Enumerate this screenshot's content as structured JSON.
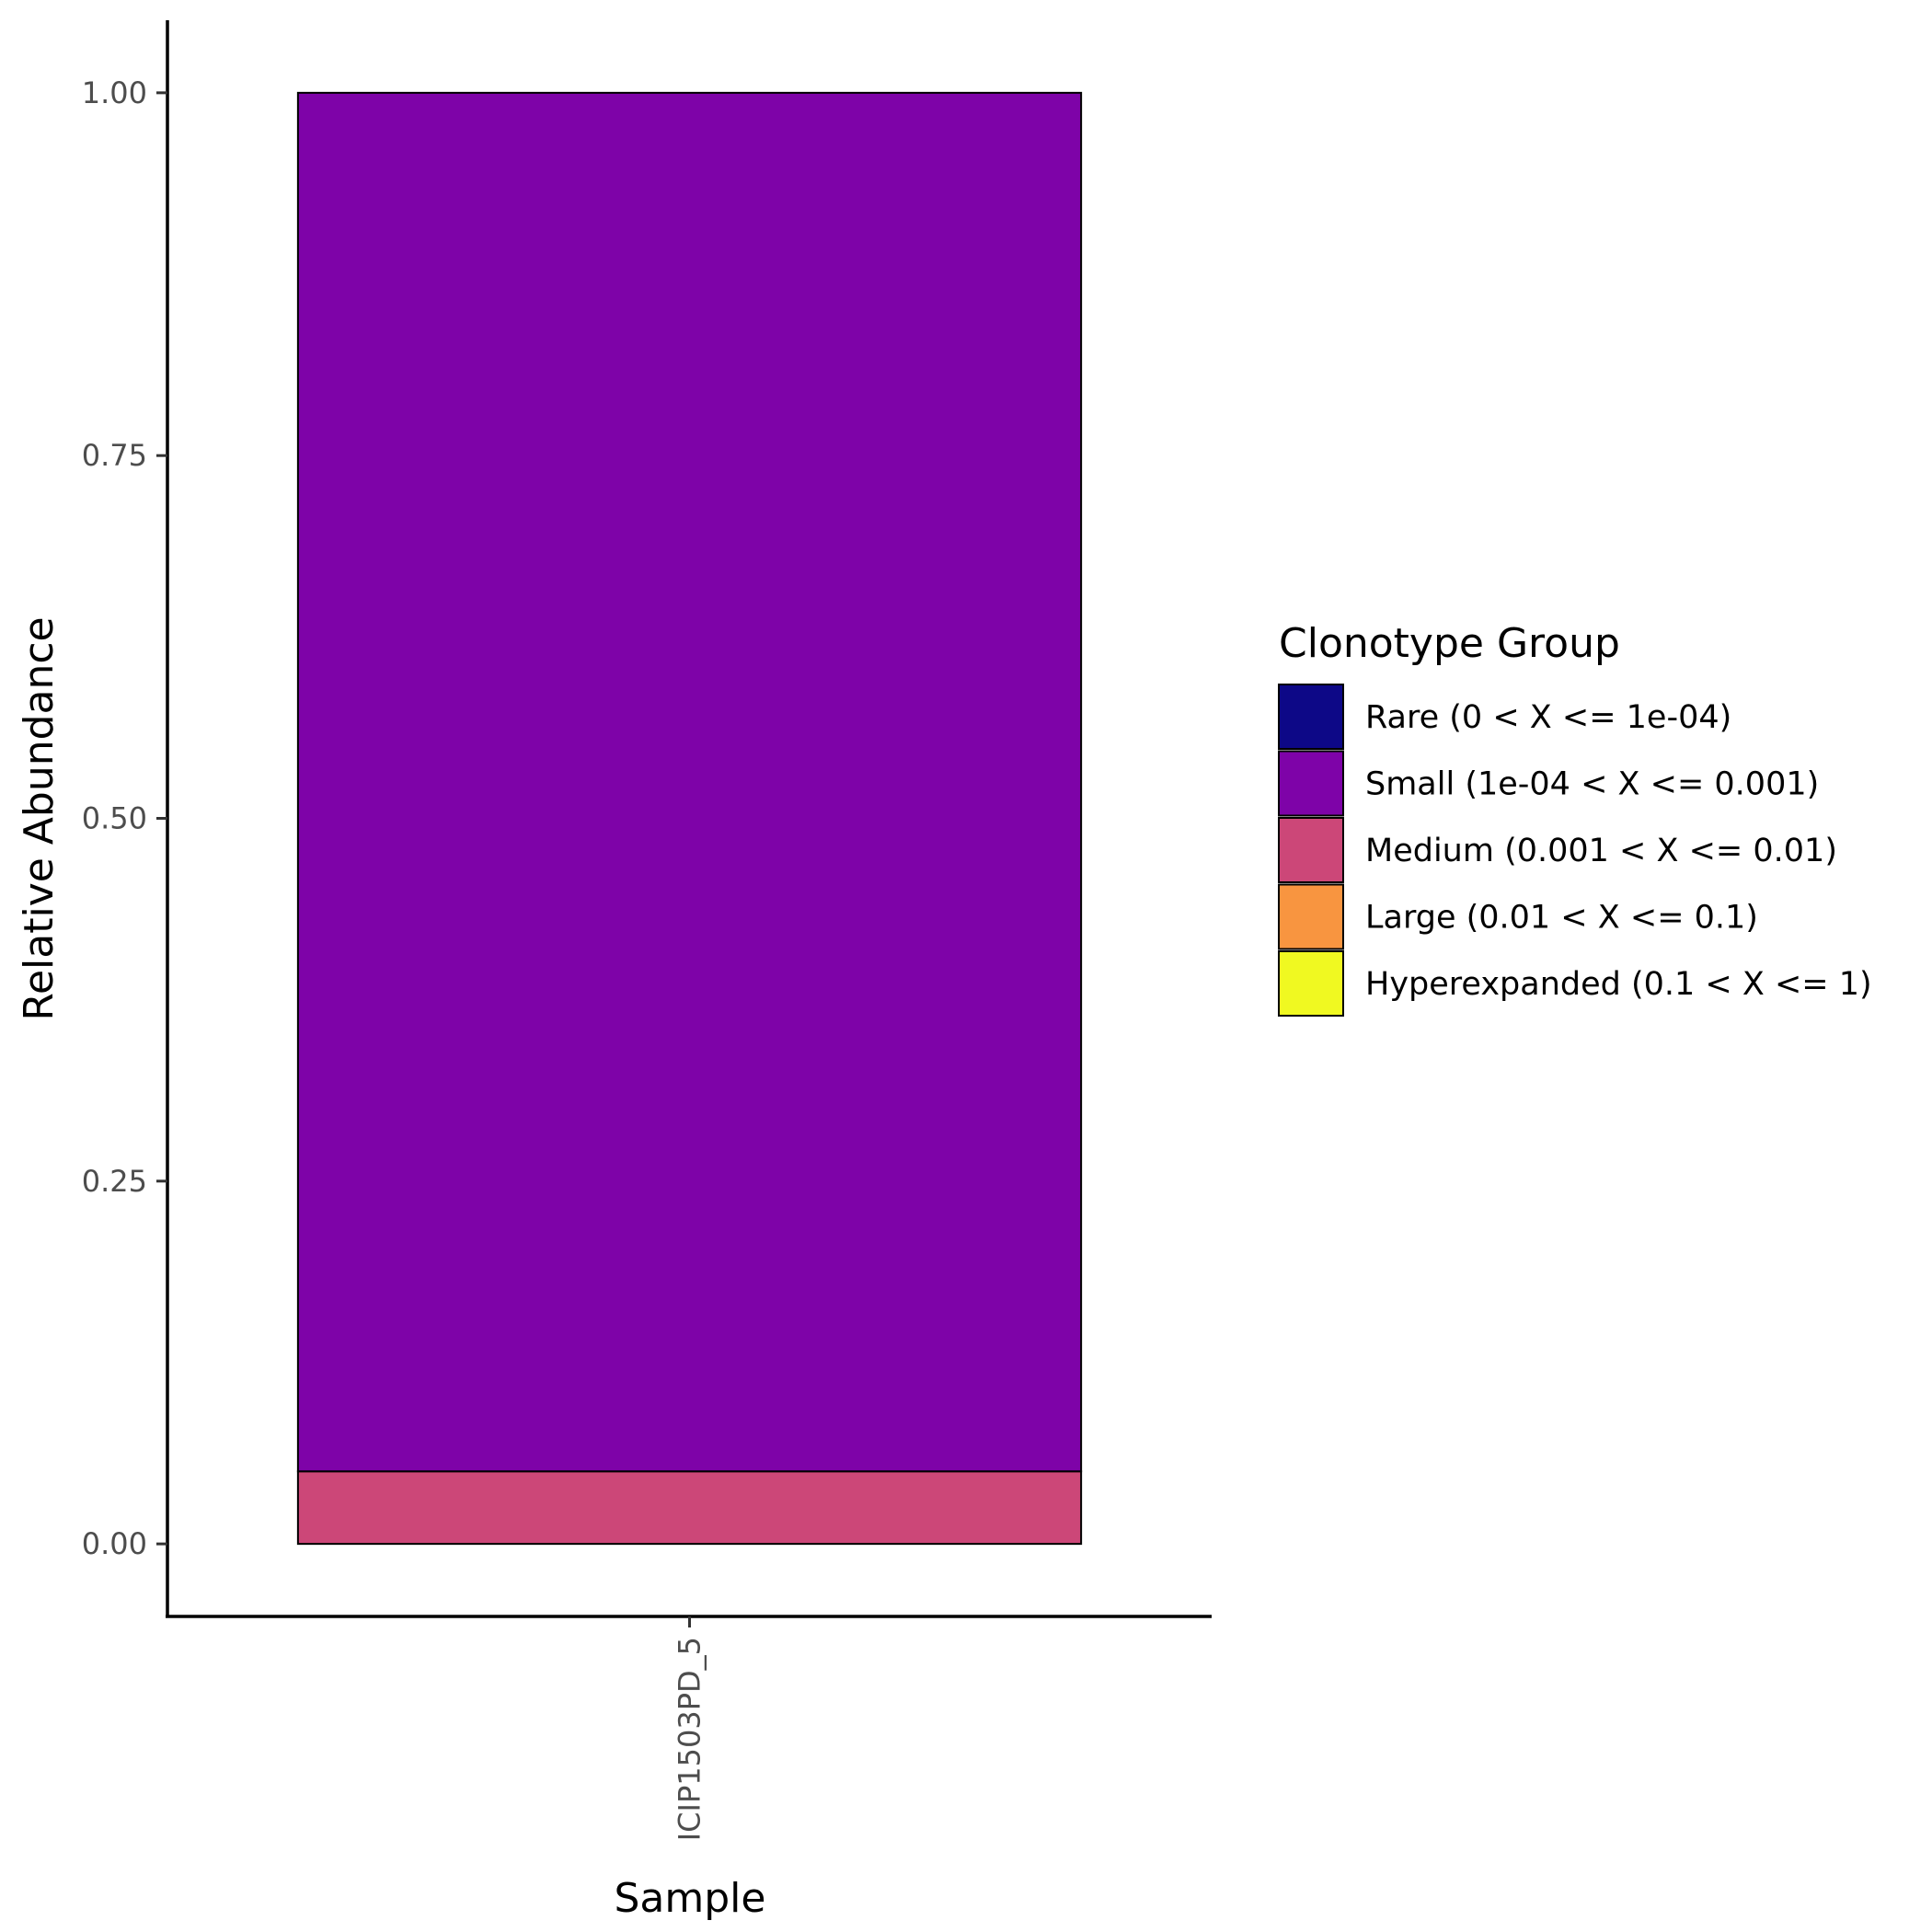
{
  "chart_data": {
    "type": "bar",
    "stacked": true,
    "xlabel": "Sample",
    "ylabel": "Relative Abundance",
    "categories": [
      "ICIP1503PD_5"
    ],
    "ylim": [
      -0.05,
      1.05
    ],
    "yticks": [
      "0.00",
      "0.25",
      "0.50",
      "0.75",
      "1.00"
    ],
    "grid": false,
    "legend": {
      "title": "Clonotype Group",
      "position": "right"
    },
    "series": [
      {
        "name": "Rare (0 < X <= 1e-04)",
        "color": "#0d0887",
        "values": [
          0
        ]
      },
      {
        "name": "Small (1e-04 < X <= 0.001)",
        "color": "#7e03a8",
        "values": [
          0.95
        ]
      },
      {
        "name": "Medium (0.001 < X <= 0.01)",
        "color": "#cc4778",
        "values": [
          0.05
        ]
      },
      {
        "name": "Large (0.01 < X <= 0.1)",
        "color": "#f89540",
        "values": [
          0
        ]
      },
      {
        "name": "Hyperexpanded (0.1 < X <= 1)",
        "color": "#f0f921",
        "values": [
          0
        ]
      }
    ]
  }
}
